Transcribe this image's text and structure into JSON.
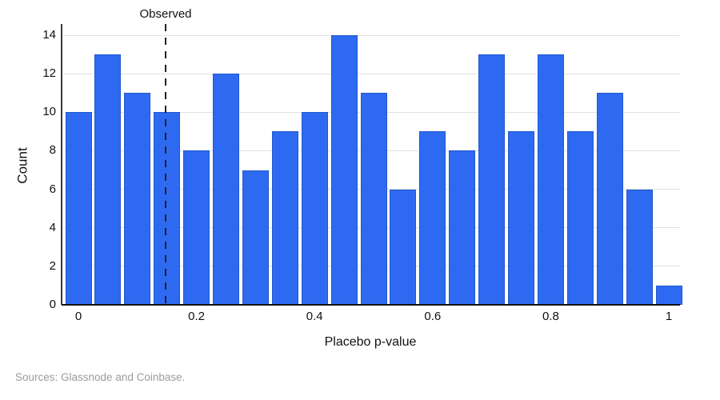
{
  "chart_data": {
    "type": "bar",
    "subtype": "histogram",
    "title": "",
    "xlabel": "Placebo p-value",
    "ylabel": "Count",
    "categories": [
      0,
      0.05,
      0.1,
      0.15,
      0.2,
      0.25,
      0.3,
      0.35,
      0.4,
      0.45,
      0.5,
      0.55,
      0.6,
      0.65,
      0.7,
      0.75,
      0.8,
      0.85,
      0.9,
      0.95,
      1.0
    ],
    "values": [
      10,
      13,
      11,
      10,
      8,
      12,
      7,
      9,
      10,
      14,
      11,
      6,
      9,
      8,
      13,
      9,
      13,
      9,
      11,
      6,
      1
    ],
    "bin_width": 0.05,
    "annotation": {
      "label": "Observed",
      "x": 0.148
    },
    "x_ticks": [
      "0",
      "0.2",
      "0.4",
      "0.6",
      "0.8",
      "1"
    ],
    "x_tick_values": [
      0,
      0.2,
      0.4,
      0.6,
      0.8,
      1
    ],
    "y_ticks": [
      "0",
      "2",
      "4",
      "6",
      "8",
      "10",
      "12",
      "14"
    ],
    "y_tick_values": [
      0,
      2,
      4,
      6,
      8,
      10,
      12,
      14
    ],
    "xlim": [
      -0.028,
      1.019
    ],
    "ylim": [
      0,
      14.6
    ],
    "grid": "horizontal",
    "legend_position": "none",
    "colors": {
      "bar_fill": "#2e6af1",
      "bar_border": "#2257cc",
      "gridline": "#e2e2e2",
      "axis": "#111111",
      "dashed_line": "#222222",
      "source_text": "#9b9b9b"
    }
  },
  "footer": {
    "source": "Sources: Glassnode and Coinbase."
  }
}
